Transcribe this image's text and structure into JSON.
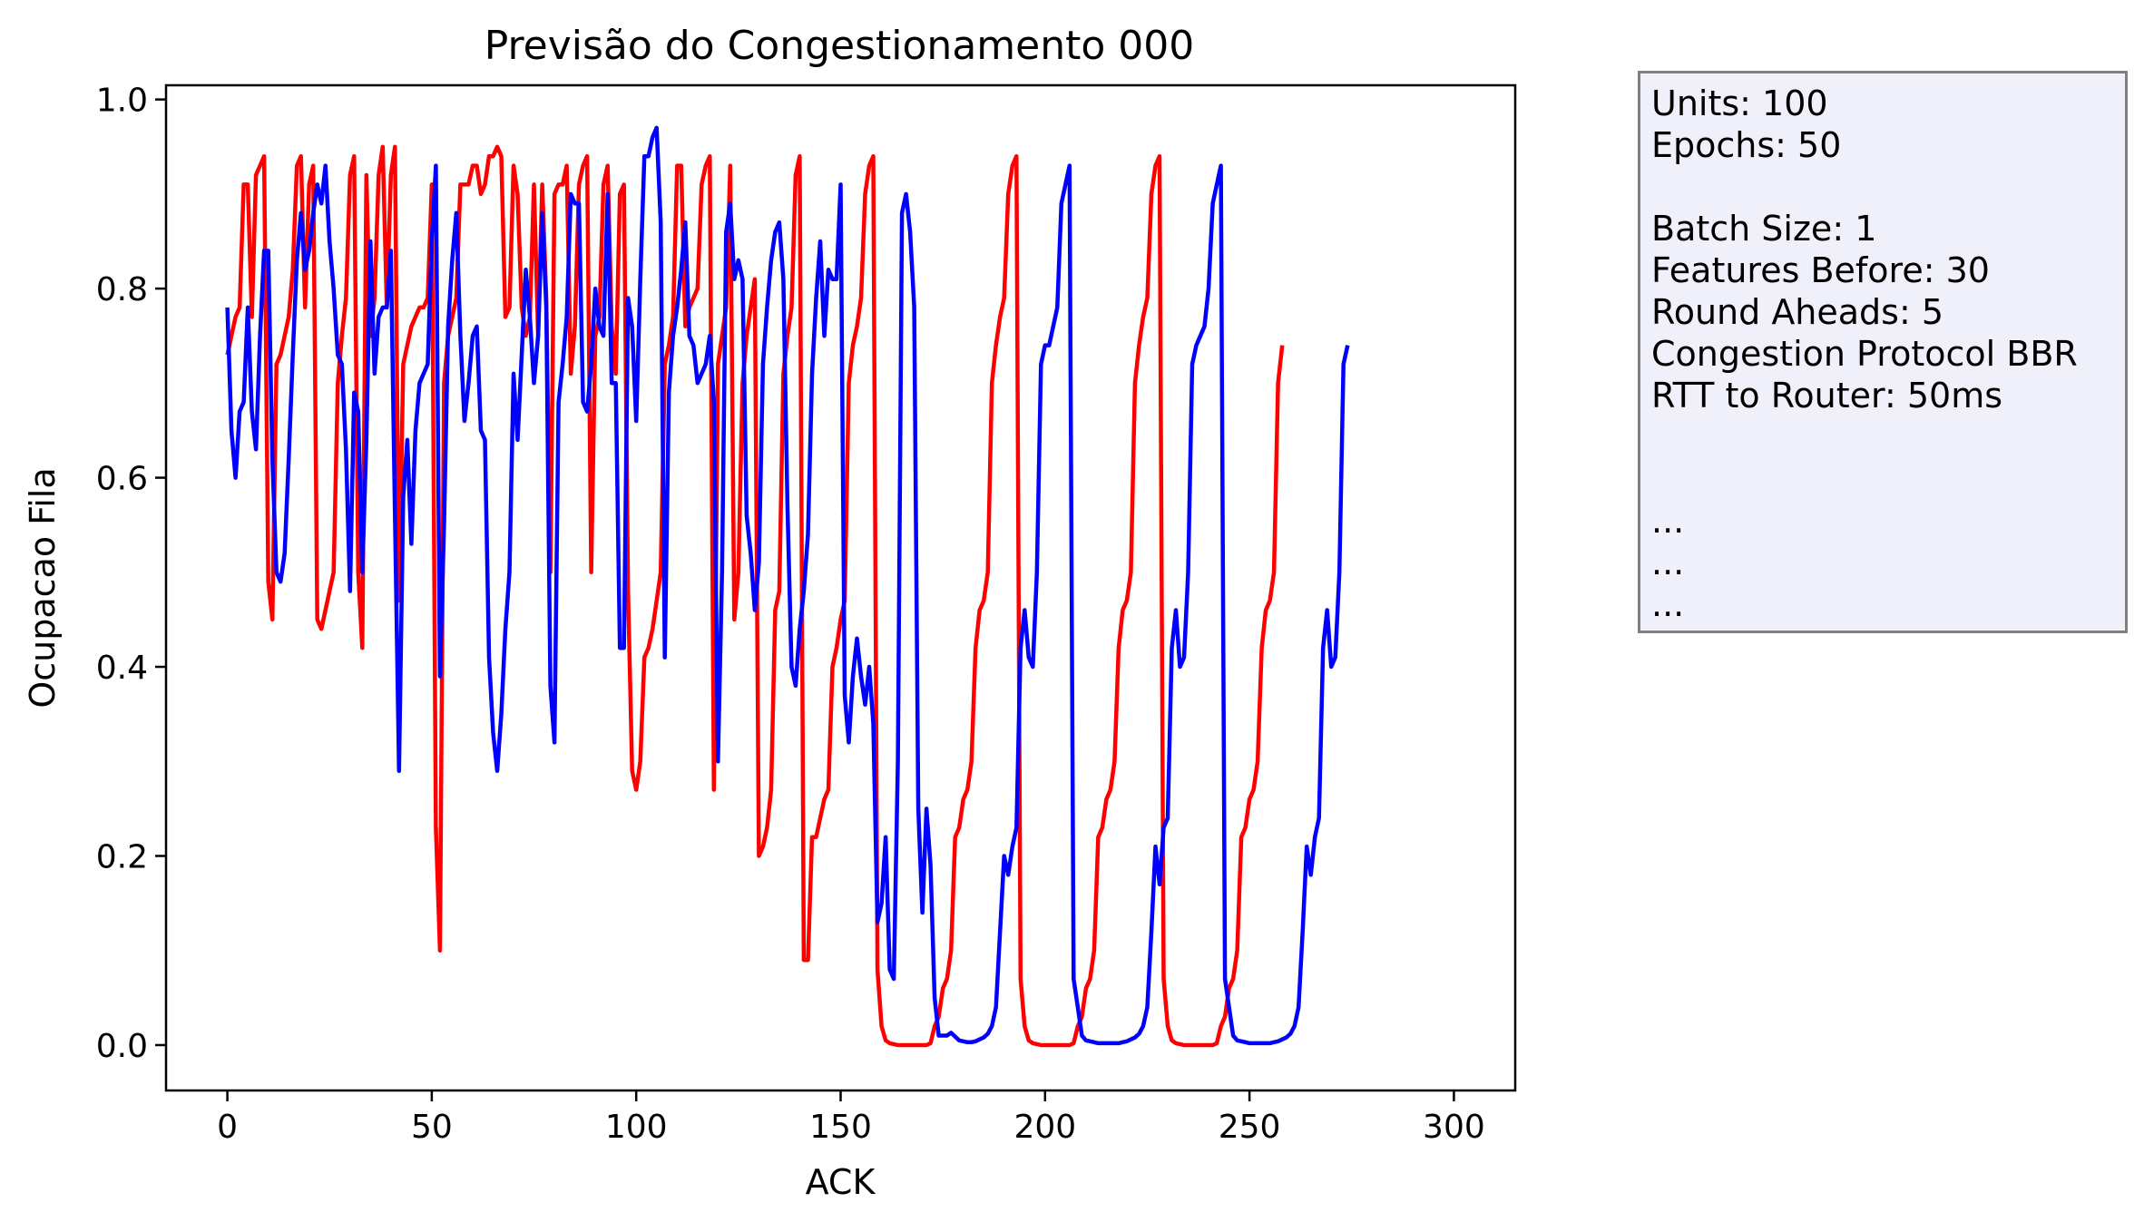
{
  "chart_data": {
    "type": "line",
    "title": "Previsão do Congestionamento 000",
    "xlabel": "ACK",
    "ylabel": "Ocupacao Fila",
    "xlim": [
      -15,
      315
    ],
    "ylim": [
      -0.048,
      1.015
    ],
    "x_ticks": [
      0,
      50,
      100,
      150,
      200,
      250,
      300
    ],
    "x_tick_labels": [
      "0",
      "50",
      "100",
      "150",
      "200",
      "250",
      "300"
    ],
    "y_ticks": [
      0.0,
      0.2,
      0.4,
      0.6,
      0.8,
      1.0
    ],
    "y_tick_labels": [
      "0.0",
      "0.2",
      "0.4",
      "0.6",
      "0.8",
      "1.0"
    ],
    "grid": false,
    "legend": "none",
    "series": [
      {
        "color": "#ff0000",
        "x_start": 0,
        "values": [
          0.73,
          0.75,
          0.77,
          0.78,
          0.91,
          0.91,
          0.77,
          0.92,
          0.93,
          0.94,
          0.49,
          0.45,
          0.72,
          0.73,
          0.75,
          0.77,
          0.82,
          0.93,
          0.94,
          0.78,
          0.91,
          0.93,
          0.45,
          0.44,
          0.46,
          0.48,
          0.5,
          0.7,
          0.75,
          0.79,
          0.92,
          0.94,
          0.5,
          0.42,
          0.92,
          0.75,
          0.79,
          0.92,
          0.95,
          0.78,
          0.92,
          0.95,
          0.47,
          0.72,
          0.74,
          0.76,
          0.77,
          0.78,
          0.78,
          0.79,
          0.91,
          0.23,
          0.1,
          0.7,
          0.75,
          0.77,
          0.79,
          0.91,
          0.91,
          0.91,
          0.93,
          0.93,
          0.9,
          0.91,
          0.94,
          0.94,
          0.95,
          0.94,
          0.77,
          0.78,
          0.93,
          0.9,
          0.78,
          0.75,
          0.77,
          0.91,
          0.75,
          0.91,
          0.79,
          0.5,
          0.9,
          0.91,
          0.91,
          0.93,
          0.71,
          0.76,
          0.91,
          0.93,
          0.94,
          0.5,
          0.75,
          0.77,
          0.91,
          0.93,
          0.76,
          0.71,
          0.9,
          0.91,
          0.48,
          0.29,
          0.27,
          0.3,
          0.41,
          0.42,
          0.44,
          0.47,
          0.5,
          0.72,
          0.74,
          0.77,
          0.93,
          0.93,
          0.76,
          0.78,
          0.79,
          0.8,
          0.91,
          0.93,
          0.94,
          0.27,
          0.72,
          0.75,
          0.78,
          0.93,
          0.45,
          0.5,
          0.7,
          0.75,
          0.78,
          0.81,
          0.2,
          0.21,
          0.23,
          0.27,
          0.46,
          0.48,
          0.71,
          0.75,
          0.78,
          0.92,
          0.94,
          0.09,
          0.09,
          0.22,
          0.22,
          0.24,
          0.26,
          0.27,
          0.4,
          0.42,
          0.45,
          0.47,
          0.7,
          0.74,
          0.76,
          0.79,
          0.9,
          0.93,
          0.94,
          0.08,
          0.02,
          0.005,
          0.002,
          0.001,
          0.0,
          0.0,
          0.0,
          0.0,
          0.0,
          0.0,
          0.0,
          0.0,
          0.002,
          0.02,
          0.03,
          0.06,
          0.07,
          0.1,
          0.22,
          0.23,
          0.26,
          0.27,
          0.3,
          0.42,
          0.46,
          0.47,
          0.5,
          0.7,
          0.74,
          0.77,
          0.79,
          0.9,
          0.93,
          0.94,
          0.07,
          0.02,
          0.005,
          0.002,
          0.001,
          0.0,
          0.0,
          0.0,
          0.0,
          0.0,
          0.0,
          0.0,
          0.0,
          0.002,
          0.02,
          0.03,
          0.06,
          0.07,
          0.1,
          0.22,
          0.23,
          0.26,
          0.27,
          0.3,
          0.42,
          0.46,
          0.47,
          0.5,
          0.7,
          0.74,
          0.77,
          0.79,
          0.9,
          0.93,
          0.94,
          0.07,
          0.02,
          0.005,
          0.002,
          0.001,
          0.0,
          0.0,
          0.0,
          0.0,
          0.0,
          0.0,
          0.0,
          0.0,
          0.002,
          0.02,
          0.03,
          0.06,
          0.07,
          0.1,
          0.22,
          0.23,
          0.26,
          0.27,
          0.3,
          0.42,
          0.46,
          0.47,
          0.5,
          0.7,
          0.74
        ]
      },
      {
        "color": "#0000ff",
        "x_start": 0,
        "values": [
          0.78,
          0.65,
          0.6,
          0.67,
          0.68,
          0.78,
          0.67,
          0.63,
          0.75,
          0.84,
          0.84,
          0.62,
          0.5,
          0.49,
          0.52,
          0.62,
          0.73,
          0.83,
          0.88,
          0.82,
          0.84,
          0.88,
          0.91,
          0.89,
          0.93,
          0.85,
          0.8,
          0.73,
          0.72,
          0.63,
          0.48,
          0.69,
          0.67,
          0.5,
          0.64,
          0.85,
          0.71,
          0.77,
          0.78,
          0.78,
          0.84,
          0.56,
          0.29,
          0.58,
          0.64,
          0.53,
          0.65,
          0.7,
          0.71,
          0.72,
          0.85,
          0.93,
          0.39,
          0.55,
          0.76,
          0.83,
          0.88,
          0.75,
          0.66,
          0.7,
          0.75,
          0.76,
          0.65,
          0.64,
          0.41,
          0.33,
          0.29,
          0.35,
          0.44,
          0.5,
          0.71,
          0.64,
          0.73,
          0.82,
          0.77,
          0.7,
          0.75,
          0.88,
          0.78,
          0.38,
          0.32,
          0.68,
          0.72,
          0.77,
          0.9,
          0.89,
          0.89,
          0.68,
          0.67,
          0.72,
          0.8,
          0.76,
          0.75,
          0.9,
          0.7,
          0.7,
          0.42,
          0.42,
          0.79,
          0.76,
          0.66,
          0.81,
          0.94,
          0.94,
          0.96,
          0.97,
          0.87,
          0.41,
          0.69,
          0.75,
          0.78,
          0.82,
          0.87,
          0.75,
          0.74,
          0.7,
          0.71,
          0.72,
          0.75,
          0.68,
          0.3,
          0.5,
          0.86,
          0.89,
          0.81,
          0.83,
          0.81,
          0.56,
          0.52,
          0.46,
          0.51,
          0.72,
          0.78,
          0.83,
          0.86,
          0.87,
          0.81,
          0.57,
          0.4,
          0.38,
          0.44,
          0.48,
          0.54,
          0.71,
          0.79,
          0.85,
          0.75,
          0.82,
          0.81,
          0.81,
          0.91,
          0.37,
          0.32,
          0.39,
          0.43,
          0.39,
          0.36,
          0.4,
          0.34,
          0.13,
          0.15,
          0.22,
          0.08,
          0.07,
          0.3,
          0.88,
          0.9,
          0.86,
          0.78,
          0.25,
          0.14,
          0.25,
          0.19,
          0.05,
          0.01,
          0.01,
          0.01,
          0.013,
          0.009,
          0.005,
          0.004,
          0.003,
          0.003,
          0.004,
          0.006,
          0.008,
          0.012,
          0.02,
          0.04,
          0.12,
          0.2,
          0.18,
          0.21,
          0.23,
          0.42,
          0.46,
          0.41,
          0.4,
          0.5,
          0.72,
          0.74,
          0.74,
          0.76,
          0.78,
          0.89,
          0.91,
          0.93,
          0.07,
          0.04,
          0.01,
          0.005,
          0.004,
          0.003,
          0.002,
          0.002,
          0.002,
          0.002,
          0.002,
          0.002,
          0.003,
          0.004,
          0.006,
          0.008,
          0.012,
          0.02,
          0.04,
          0.12,
          0.21,
          0.17,
          0.23,
          0.24,
          0.42,
          0.46,
          0.4,
          0.41,
          0.5,
          0.72,
          0.74,
          0.75,
          0.76,
          0.8,
          0.89,
          0.91,
          0.93,
          0.07,
          0.04,
          0.01,
          0.005,
          0.004,
          0.003,
          0.002,
          0.002,
          0.002,
          0.002,
          0.002,
          0.002,
          0.003,
          0.004,
          0.006,
          0.008,
          0.012,
          0.02,
          0.04,
          0.12,
          0.21,
          0.18,
          0.22,
          0.24,
          0.42,
          0.46,
          0.4,
          0.41,
          0.5,
          0.72,
          0.74
        ]
      }
    ]
  },
  "info_box": {
    "lines": [
      "Units: 100",
      "Epochs: 50",
      "",
      "Batch Size: 1",
      "Features Before: 30",
      "Round Aheads: 5",
      "Congestion Protocol BBR",
      "RTT to Router: 50ms",
      "",
      "",
      "...",
      "...",
      "..."
    ]
  }
}
